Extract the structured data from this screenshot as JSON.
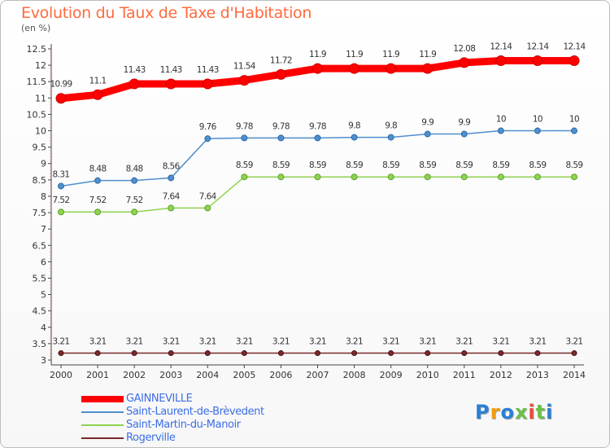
{
  "header": {
    "title": "Evolution du Taux de Taxe d'Habitation",
    "subtitle": "(en %)"
  },
  "chart_data": {
    "type": "line",
    "title": "Evolution du Taux de Taxe d'Habitation",
    "ylabel": "(en %)",
    "xlabel": "",
    "categories": [
      "2000",
      "2001",
      "2002",
      "2003",
      "2004",
      "2005",
      "2006",
      "2007",
      "2008",
      "2009",
      "2010",
      "2011",
      "2012",
      "2013",
      "2014"
    ],
    "ylim": [
      3,
      12.5
    ],
    "yticks": [
      3,
      3.5,
      4,
      4.5,
      5,
      5.5,
      6,
      6.5,
      7,
      7.5,
      8,
      8.5,
      9,
      9.5,
      10,
      10.5,
      11,
      11.5,
      12,
      12.5
    ],
    "grid": false,
    "legend_position": "bottom-left",
    "series": [
      {
        "name": "GAINNEVILLE",
        "color": "#ff0000",
        "values": [
          10.99,
          11.1,
          11.43,
          11.43,
          11.43,
          11.54,
          11.72,
          11.9,
          11.9,
          11.9,
          11.9,
          12.08,
          12.14,
          12.14,
          12.14
        ],
        "labels": [
          "10.99",
          "11.1",
          "11.43",
          "11.43",
          "11.43",
          "11.54",
          "11.72",
          "11.9",
          "11.9",
          "11.9",
          "11.9",
          "12.08",
          "12.14",
          "12.14",
          "12.14"
        ]
      },
      {
        "name": "Saint-Laurent-de-Brèvedent",
        "color": "#4f8fce",
        "values": [
          8.31,
          8.48,
          8.48,
          8.56,
          9.76,
          9.78,
          9.78,
          9.78,
          9.8,
          9.8,
          9.9,
          9.9,
          10,
          10,
          10
        ],
        "labels": [
          "8.31",
          "8.48",
          "8.48",
          "8.56",
          "9.76",
          "9.78",
          "9.78",
          "9.78",
          "9.8",
          "9.8",
          "9.9",
          "9.9",
          "10",
          "10",
          "10"
        ]
      },
      {
        "name": "Saint-Martin-du-Manoir",
        "color": "#8fd34f",
        "values": [
          7.52,
          7.52,
          7.52,
          7.64,
          7.64,
          8.59,
          8.59,
          8.59,
          8.59,
          8.59,
          8.59,
          8.59,
          8.59,
          8.59,
          8.59
        ],
        "labels": [
          "7.52",
          "7.52",
          "7.52",
          "7.64",
          "7.64",
          "8.59",
          "8.59",
          "8.59",
          "8.59",
          "8.59",
          "8.59",
          "8.59",
          "8.59",
          "8.59",
          "8.59"
        ]
      },
      {
        "name": "Rogerville",
        "color": "#7a2a2a",
        "values": [
          3.21,
          3.21,
          3.21,
          3.21,
          3.21,
          3.21,
          3.21,
          3.21,
          3.21,
          3.21,
          3.21,
          3.21,
          3.21,
          3.21,
          3.21
        ],
        "labels": [
          "3.21",
          "3.21",
          "3.21",
          "3.21",
          "3.21",
          "3.21",
          "3.21",
          "3.21",
          "3.21",
          "3.21",
          "3.21",
          "3.21",
          "3.21",
          "3.21",
          "3.21"
        ]
      }
    ]
  },
  "legend": {
    "items": [
      {
        "label": "GAINNEVILLE"
      },
      {
        "label": "Saint-Laurent-de-Brèvedent"
      },
      {
        "label": "Saint-Martin-du-Manoir"
      },
      {
        "label": "Rogerville"
      }
    ]
  },
  "branding": {
    "logo_text": "Proxiti",
    "letter_colors": [
      "#2a7fd6",
      "#f39c12",
      "#2a7fd6",
      "#6cc04a",
      "#e74c3c",
      "#6cc04a",
      "#2a7fd6"
    ]
  }
}
